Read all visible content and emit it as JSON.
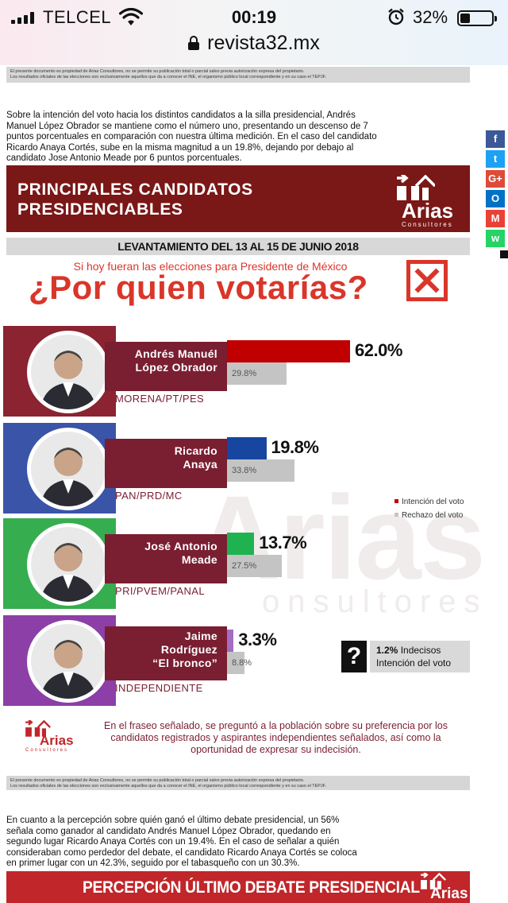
{
  "status_bar": {
    "carrier": "TELCEL",
    "time": "00:19",
    "battery": "32%",
    "battery_fraction": 0.32
  },
  "browser": {
    "url": "revista32.mx"
  },
  "disclaimer": {
    "line1": "El presente documento es propiedad de Arias Consultores, no se permite su publicación total o parcial salvo previa autorización expresa del propietario.",
    "line2": "Los resultados oficiales de las elecciones son exclusivamente aquellos que da a conocer el INE, el organismo público local correspondiente y en su caso el TEPJF."
  },
  "intro_text": "Sobre la intención del voto hacia los distintos candidatos a la silla presidencial, Andrés Manuel López Obrador se mantiene como el número uno, presentando un descenso de 7 puntos porcentuales en comparación con nuestra última medición. En el caso del candidato Ricardo Anaya Cortés, sube en la misma magnitud a un 19.8%, dejando por debajo al candidato Jose Antonio Meade por 6 puntos porcentuales.",
  "header": {
    "title_line1": "PRINCIPALES CANDIDATOS",
    "title_line2": "PRESIDENCIABLES",
    "logo_name": "Arias",
    "logo_sub": "Consultores"
  },
  "survey_dates": "LEVANTAMIENTO DEL 13 AL 15 DE JUNIO 2018",
  "question_small": "Si hoy fueran las elecciones para Presidente de México",
  "question_big": "¿Por quien votarías?",
  "watermark": {
    "big": "Arias",
    "small": "onsultores"
  },
  "chart_data": {
    "type": "bar",
    "categories": [
      "Andrés Manuél López Obrador",
      "Ricardo Anaya",
      "José Antonio Meade",
      "Jaime Rodríguez “El bronco”"
    ],
    "series": [
      {
        "name": "Intención del voto",
        "values": [
          62.0,
          19.8,
          13.7,
          3.3
        ],
        "color": "#c00000"
      },
      {
        "name": "Rechazo del voto",
        "values": [
          29.8,
          33.8,
          27.5,
          8.8
        ],
        "color": "#c4c4c4"
      }
    ],
    "candidates": [
      {
        "name_line1": "Andrés Manuél",
        "name_line2": "López Obrador",
        "name_line3": "",
        "party": "MORENA/PT/PES",
        "intention": "62.0%",
        "rejection": "29.8%",
        "intention_value": 62.0,
        "rejection_value": 29.8,
        "bar_color": "#c00000",
        "accent": "#8b2331",
        "fill": "#c00000"
      },
      {
        "name_line1": "Ricardo",
        "name_line2": "Anaya",
        "name_line3": "",
        "party": "PAN/PRD/MC",
        "intention": "19.8%",
        "rejection": "33.8%",
        "intention_value": 19.8,
        "rejection_value": 33.8,
        "bar_color": "#1646a0",
        "accent": "#3a54a8",
        "fill": "#1646a0"
      },
      {
        "name_line1": "José Antonio",
        "name_line2": "Meade",
        "name_line3": "",
        "party": "PRI/PVEM/PANAL",
        "intention": "13.7%",
        "rejection": "27.5%",
        "intention_value": 13.7,
        "rejection_value": 27.5,
        "bar_color": "#1fb251",
        "accent": "#36ad4e",
        "fill": "#1fb251"
      },
      {
        "name_line1": "Jaime",
        "name_line2": "Rodríguez",
        "name_line3": "“El bronco”",
        "party": "INDEPENDIENTE",
        "intention": "3.3%",
        "rejection": "8.8%",
        "intention_value": 3.3,
        "rejection_value": 8.8,
        "bar_color": "#a36dc0",
        "accent": "#8c3fa6",
        "fill": "#a36dc0"
      }
    ],
    "legend": [
      "Intención del voto",
      "Rechazo del voto"
    ],
    "undecided": {
      "value": "1.2%",
      "label": "Indecisos",
      "sub": "Intención del voto",
      "symbol": "?"
    }
  },
  "footnote": "En el fraseo señalado, se preguntó a la población sobre su preferencia por los candidatos registrados y aspirantes independientes señalados, así como la oportunidad de expresar su indecisión.",
  "debate_text": "En cuanto a la percepción sobre quién ganó el último debate presidencial, un 56% señala como ganador al candidato Andrés Manuel López Obrador, quedando en segundo lugar Ricardo Anaya Cortés con un 19.4%. En el caso de señalar a quién consideraban como perdedor del debate, el candidato Ricardo Anaya Cortés se coloca en primer lugar con un 42.3%, seguido por el tabasqueño con un 30.3%.",
  "bottom_banner": "PERCEPCIÓN ÚLTIMO DEBATE PRESIDENCIAL",
  "share_buttons": [
    {
      "icon": "facebook-icon",
      "glyph": "f",
      "color": "#3b5998"
    },
    {
      "icon": "twitter-icon",
      "glyph": "t",
      "color": "#1da1f2"
    },
    {
      "icon": "google-plus-icon",
      "glyph": "G+",
      "color": "#dd4b39"
    },
    {
      "icon": "outlook-icon",
      "glyph": "O",
      "color": "#0072c6"
    },
    {
      "icon": "gmail-icon",
      "glyph": "M",
      "color": "#e94235"
    },
    {
      "icon": "whatsapp-icon",
      "glyph": "w",
      "color": "#25d366"
    }
  ]
}
